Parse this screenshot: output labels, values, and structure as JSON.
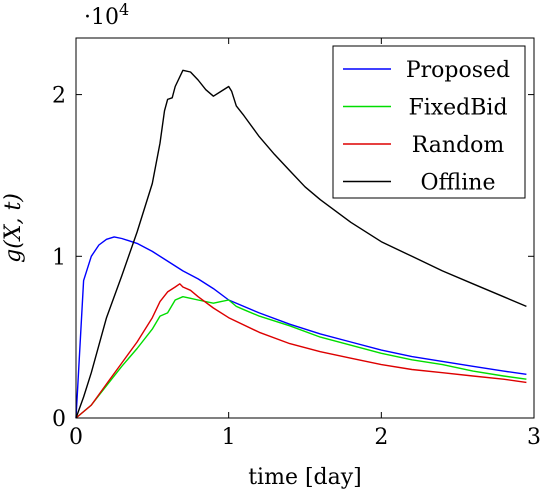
{
  "chart_data": {
    "type": "line",
    "title": "",
    "xlabel": "time [day]",
    "ylabel": "g(X, t)",
    "y_scale_label": "·10",
    "y_scale_exponent": "4",
    "xlim": [
      0,
      3
    ],
    "ylim": [
      0,
      23500
    ],
    "xticks": [
      0,
      1,
      2,
      3
    ],
    "xtick_labels": [
      "0",
      "1",
      "2",
      "3"
    ],
    "yticks": [
      0,
      10000,
      20000
    ],
    "ytick_labels": [
      "0",
      "1",
      "2"
    ],
    "grid": false,
    "legend_position": "top-right",
    "series": [
      {
        "name": "Proposed",
        "color": "#0000ff",
        "x": [
          0,
          0.05,
          0.1,
          0.15,
          0.2,
          0.25,
          0.3,
          0.4,
          0.5,
          0.6,
          0.7,
          0.8,
          0.9,
          1.0,
          1.2,
          1.4,
          1.6,
          1.8,
          2.0,
          2.2,
          2.4,
          2.6,
          2.8,
          2.95
        ],
        "y": [
          0,
          8500,
          10000,
          10700,
          11050,
          11200,
          11100,
          10800,
          10300,
          9700,
          9100,
          8600,
          8000,
          7300,
          6500,
          5800,
          5200,
          4700,
          4200,
          3800,
          3500,
          3200,
          2900,
          2700
        ]
      },
      {
        "name": "FixedBid",
        "color": "#00dd00",
        "x": [
          0,
          0.1,
          0.2,
          0.3,
          0.4,
          0.5,
          0.55,
          0.6,
          0.65,
          0.7,
          0.75,
          0.8,
          0.9,
          0.95,
          1.0,
          1.05,
          1.1,
          1.2,
          1.4,
          1.6,
          1.8,
          2.0,
          2.2,
          2.4,
          2.6,
          2.8,
          2.95
        ],
        "y": [
          0,
          800,
          2000,
          3200,
          4300,
          5500,
          6300,
          6500,
          7300,
          7500,
          7400,
          7300,
          7100,
          7200,
          7300,
          6900,
          6700,
          6300,
          5700,
          5000,
          4500,
          4000,
          3600,
          3300,
          2900,
          2600,
          2400
        ]
      },
      {
        "name": "Random",
        "color": "#dd0000",
        "x": [
          0,
          0.1,
          0.2,
          0.3,
          0.4,
          0.5,
          0.55,
          0.6,
          0.65,
          0.68,
          0.7,
          0.75,
          0.8,
          0.9,
          1.0,
          1.2,
          1.4,
          1.6,
          1.8,
          2.0,
          2.2,
          2.4,
          2.6,
          2.8,
          2.95
        ],
        "y": [
          0,
          800,
          2100,
          3400,
          4700,
          6200,
          7200,
          7800,
          8100,
          8300,
          8100,
          7900,
          7500,
          6800,
          6200,
          5300,
          4600,
          4100,
          3700,
          3300,
          3000,
          2800,
          2600,
          2400,
          2200
        ]
      },
      {
        "name": "Offline",
        "color": "#000000",
        "x": [
          0,
          0.05,
          0.1,
          0.15,
          0.2,
          0.3,
          0.4,
          0.5,
          0.55,
          0.58,
          0.6,
          0.63,
          0.65,
          0.7,
          0.75,
          0.8,
          0.85,
          0.9,
          0.95,
          1.0,
          1.02,
          1.05,
          1.1,
          1.2,
          1.3,
          1.4,
          1.5,
          1.6,
          1.8,
          2.0,
          2.2,
          2.4,
          2.6,
          2.8,
          2.95
        ],
        "y": [
          0,
          1300,
          2800,
          4500,
          6200,
          8800,
          11500,
          14500,
          17000,
          19000,
          19700,
          19800,
          20500,
          21500,
          21400,
          20900,
          20300,
          19900,
          20200,
          20500,
          20200,
          19300,
          18700,
          17400,
          16300,
          15300,
          14300,
          13500,
          12100,
          10900,
          10000,
          9100,
          8300,
          7500,
          6900
        ]
      }
    ]
  }
}
